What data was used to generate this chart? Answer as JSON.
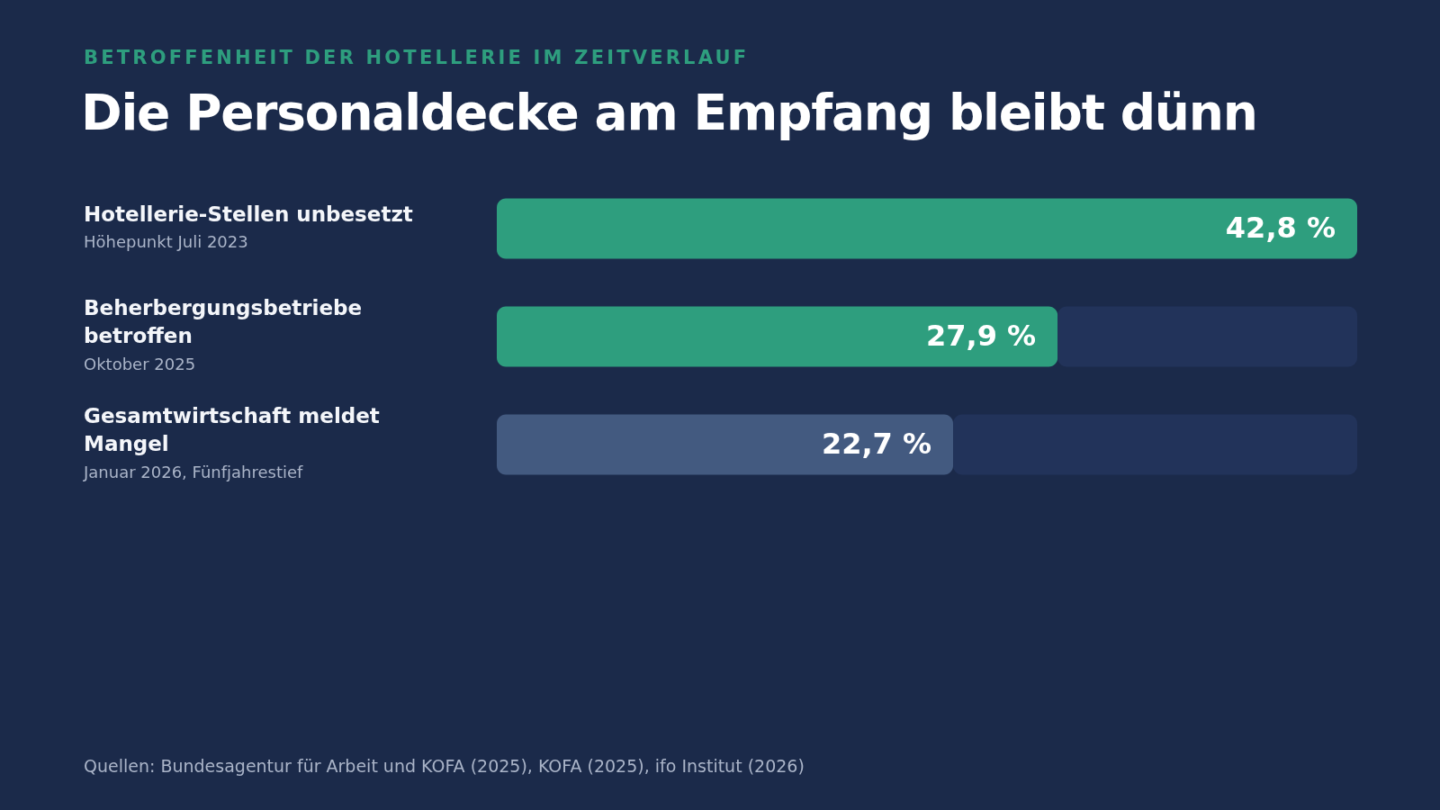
{
  "chart_data": {
    "type": "bar",
    "orientation": "horizontal",
    "stacked": true,
    "subtitle": "BETROFFENHEIT DER HOTELLERIE IM ZEITVERLAUF",
    "title": "Die Personaldecke am Empfang bleibt dünn",
    "categories": [
      "Hotellerie-Stellen unbesetzt",
      "Beherbergungsbetriebe betroffen",
      "Gesamtwirtschaft meldet Mangel"
    ],
    "series": [
      {
        "colors": [
          "#2e9e7e",
          "#2e9e7e",
          "#435a80"
        ],
        "values": [
          42.8,
          27.9,
          22.7
        ],
        "value_labels": [
          "42,8 %",
          "27,9 %",
          "22,7 %"
        ]
      },
      {
        "color": "#22335a",
        "values": [
          null,
          14.9,
          20.1
        ]
      }
    ],
    "xlim": [
      0,
      42.8
    ],
    "tick_labels": "y",
    "annotations": [
      "Höhepunkt Juli 2023",
      "Oktober 2025",
      "Januar 2026, Fünfjahrestief",
      "Quellen: Bundesagentur für Arbeit und KOFA (2025), KOFA (2025), ifo Institut (2026)"
    ]
  }
}
